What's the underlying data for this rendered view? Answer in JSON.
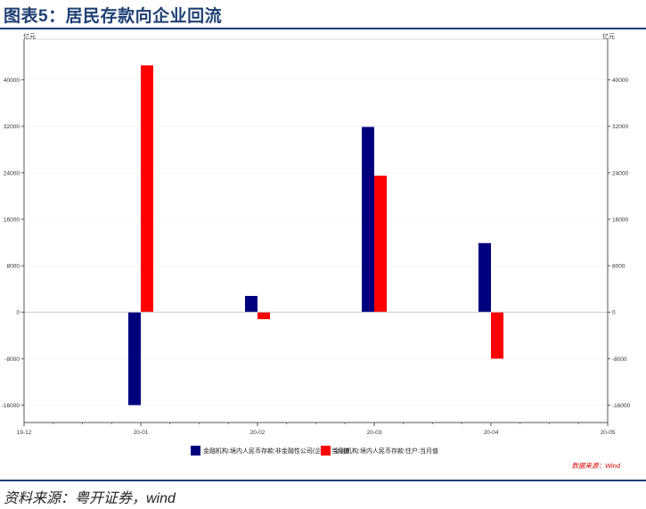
{
  "header": {
    "title": "图表5：居民存款向企业回流"
  },
  "footer": {
    "source": "资料来源：粤开证券，wind"
  },
  "chart_data": {
    "type": "bar",
    "y_unit_left": "亿元",
    "y_unit_right": "亿元",
    "ylim": [
      -19000,
      47000
    ],
    "yticks": [
      -16000,
      -8000,
      0,
      8000,
      16000,
      24000,
      32000,
      40000
    ],
    "x_tick_labels": [
      "19-12",
      "20-01",
      "20-02",
      "20-03",
      "20-04",
      "20-05"
    ],
    "categories": [
      "20-01",
      "20-02",
      "20-03",
      "20-04"
    ],
    "series": [
      {
        "name": "金融机构:境内人民币存款:非金融性公司(企业):当月值",
        "color": "#00007f",
        "values": [
          -16000,
          2800,
          31900,
          11900
        ]
      },
      {
        "name": "金融机构:境内人民币存款:住户:当月值",
        "color": "#ff0000",
        "values": [
          42500,
          -1200,
          23500,
          -8000
        ]
      }
    ],
    "legend_position": "bottom",
    "grid": false,
    "note": "数据来源：Wind"
  }
}
